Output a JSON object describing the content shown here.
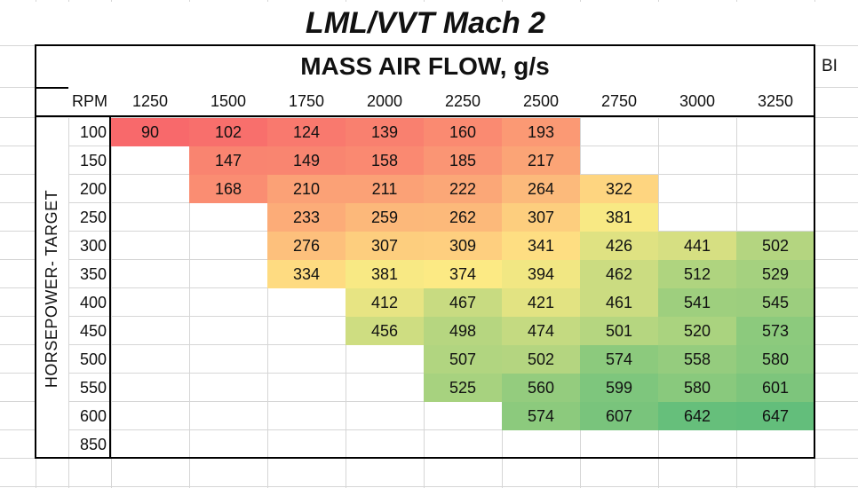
{
  "title": "LML/VVT Mach 2",
  "table_title": "MASS AIR FLOW, g/s",
  "side_cell_text": "BI",
  "axis": {
    "col_header_label": "RPM",
    "row_axis_label": "HORSEPOWER- TARGET"
  },
  "columns": [
    "1250",
    "1500",
    "1750",
    "2000",
    "2250",
    "2500",
    "2750",
    "3000",
    "3250"
  ],
  "rows": [
    "100",
    "150",
    "200",
    "250",
    "300",
    "350",
    "400",
    "450",
    "500",
    "550",
    "600",
    "850"
  ],
  "values": [
    [
      "90",
      "102",
      "124",
      "139",
      "160",
      "193",
      "",
      "",
      ""
    ],
    [
      "",
      "147",
      "149",
      "158",
      "185",
      "217",
      "",
      "",
      ""
    ],
    [
      "",
      "168",
      "210",
      "211",
      "222",
      "264",
      "322",
      "",
      ""
    ],
    [
      "",
      "",
      "233",
      "259",
      "262",
      "307",
      "381",
      "",
      ""
    ],
    [
      "",
      "",
      "276",
      "307",
      "309",
      "341",
      "426",
      "441",
      "502"
    ],
    [
      "",
      "",
      "334",
      "381",
      "374",
      "394",
      "462",
      "512",
      "529"
    ],
    [
      "",
      "",
      "",
      "412",
      "467",
      "421",
      "461",
      "541",
      "545"
    ],
    [
      "",
      "",
      "",
      "456",
      "498",
      "474",
      "501",
      "520",
      "573"
    ],
    [
      "",
      "",
      "",
      "",
      "507",
      "502",
      "574",
      "558",
      "580"
    ],
    [
      "",
      "",
      "",
      "",
      "525",
      "560",
      "599",
      "580",
      "601"
    ],
    [
      "",
      "",
      "",
      "",
      "",
      "574",
      "607",
      "642",
      "647"
    ],
    [
      "",
      "",
      "",
      "",
      "",
      "",
      "",
      "",
      ""
    ]
  ],
  "color_scale": {
    "min": 90,
    "max": 647,
    "low_color": "#f8696b",
    "mid_color": "#ffeb84",
    "high_color": "#63be7b"
  },
  "chart_data": {
    "type": "heatmap",
    "title": "LML/VVT Mach 2 — MASS AIR FLOW, g/s",
    "xlabel": "RPM",
    "ylabel": "HORSEPOWER- TARGET",
    "x": [
      1250,
      1500,
      1750,
      2000,
      2250,
      2500,
      2750,
      3000,
      3250
    ],
    "y": [
      100,
      150,
      200,
      250,
      300,
      350,
      400,
      450,
      500,
      550,
      600,
      850
    ],
    "z": [
      [
        90,
        102,
        124,
        139,
        160,
        193,
        null,
        null,
        null
      ],
      [
        null,
        147,
        149,
        158,
        185,
        217,
        null,
        null,
        null
      ],
      [
        null,
        168,
        210,
        211,
        222,
        264,
        322,
        null,
        null
      ],
      [
        null,
        null,
        233,
        259,
        262,
        307,
        381,
        null,
        null
      ],
      [
        null,
        null,
        276,
        307,
        309,
        341,
        426,
        441,
        502
      ],
      [
        null,
        null,
        334,
        381,
        374,
        394,
        462,
        512,
        529
      ],
      [
        null,
        null,
        null,
        412,
        467,
        421,
        461,
        541,
        545
      ],
      [
        null,
        null,
        null,
        456,
        498,
        474,
        501,
        520,
        573
      ],
      [
        null,
        null,
        null,
        null,
        507,
        502,
        574,
        558,
        580
      ],
      [
        null,
        null,
        null,
        null,
        525,
        560,
        599,
        580,
        601
      ],
      [
        null,
        null,
        null,
        null,
        null,
        574,
        607,
        642,
        647
      ],
      [
        null,
        null,
        null,
        null,
        null,
        null,
        null,
        null,
        null
      ]
    ],
    "colorscale": "red-yellow-green (low→high)"
  }
}
